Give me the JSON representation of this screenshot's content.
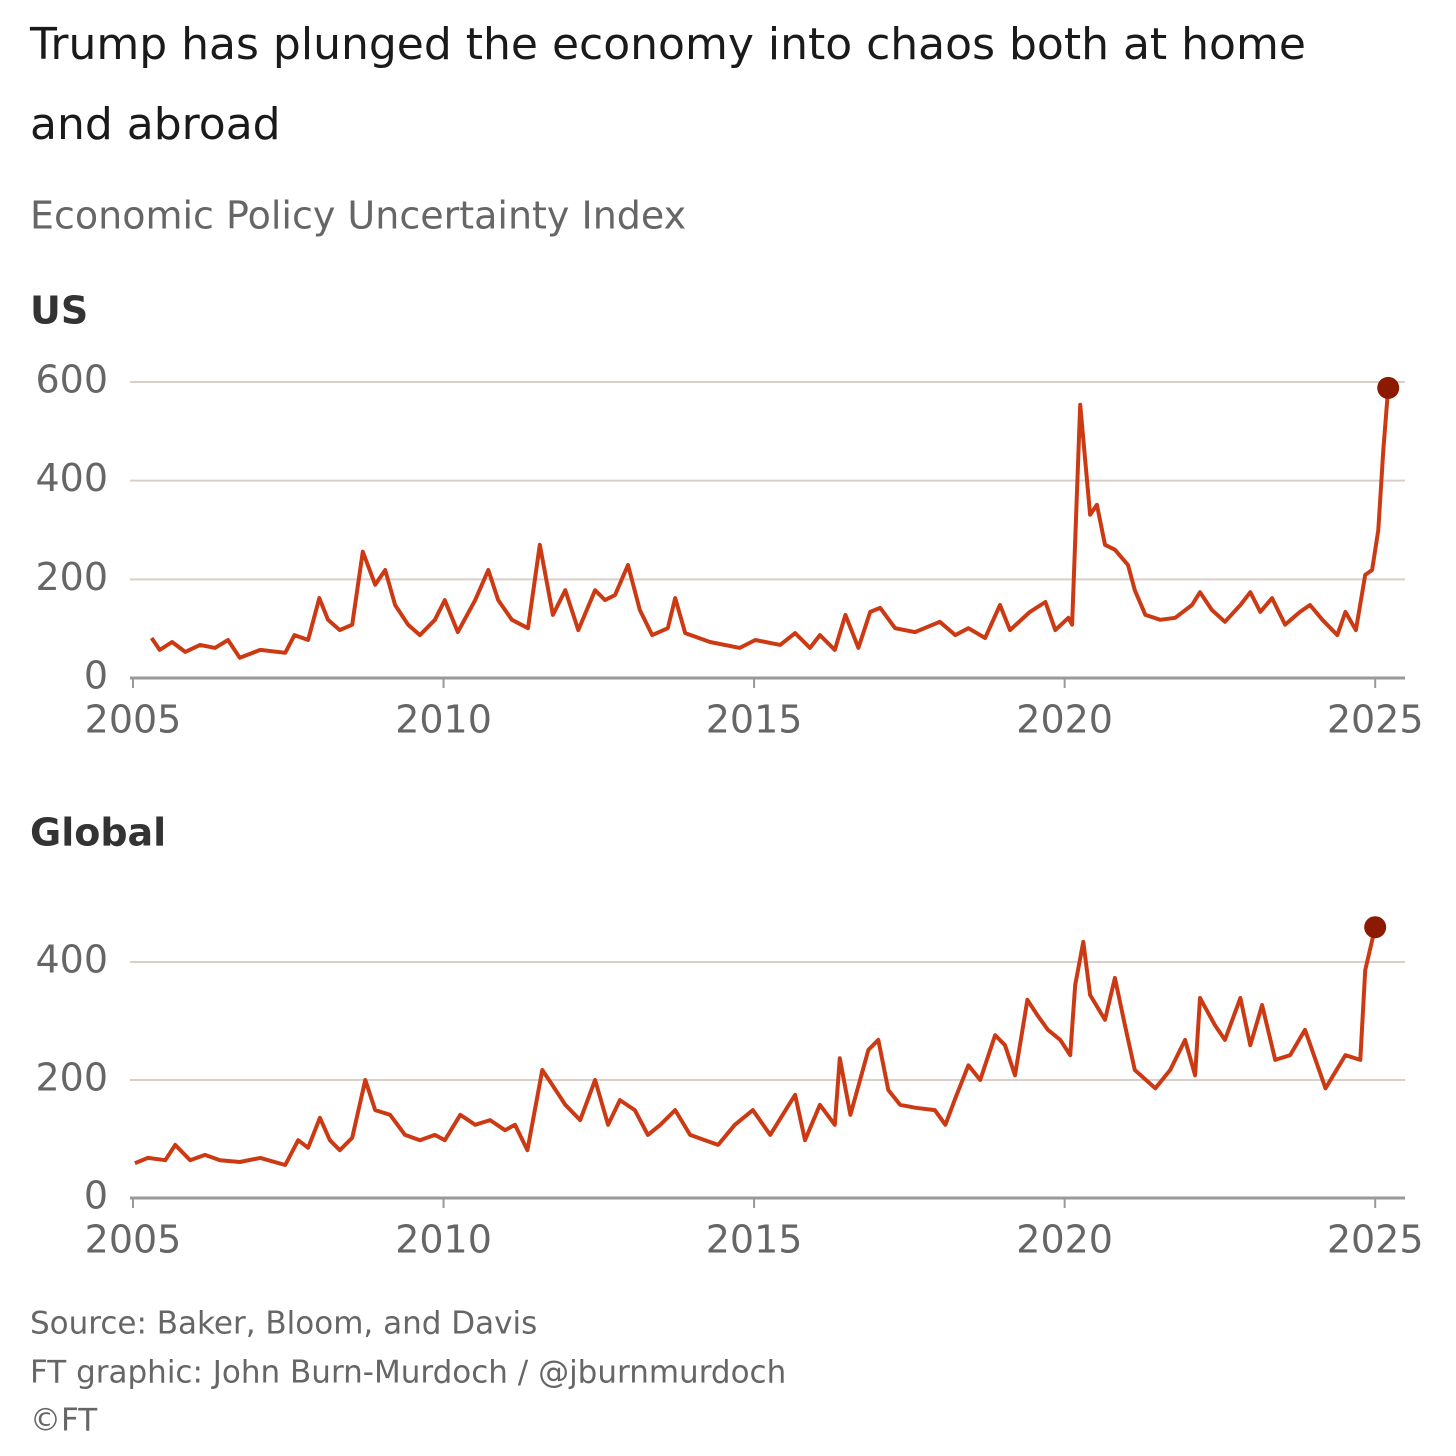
{
  "header": {
    "title": [
      "Trump has plunged the economy into chaos both at home",
      "and abroad"
    ],
    "subtitle": "Economic Policy Uncertainty Index"
  },
  "footer": [
    "Source: Baker, Bloom, and Davis",
    "FT graphic: John Burn-Murdoch / @jburnmurdoch",
    "©FT"
  ],
  "chart_data": [
    {
      "type": "line",
      "title": "US",
      "color": "#cc3a14",
      "marker_color": "#8b1a00",
      "grid": true,
      "xlim": [
        2005,
        2025.48
      ],
      "xticks": [
        2005,
        2010,
        2015,
        2020,
        2025
      ],
      "ylim": [
        0,
        600
      ],
      "yticks": [
        0,
        200,
        400,
        600
      ],
      "x": [
        2005.3,
        2005.43,
        2005.63,
        2005.84,
        2006.08,
        2006.32,
        2006.53,
        2006.72,
        2007.05,
        2007.45,
        2007.6,
        2007.82,
        2008.0,
        2008.14,
        2008.33,
        2008.53,
        2008.7,
        2008.9,
        2009.06,
        2009.22,
        2009.43,
        2009.62,
        2009.86,
        2010.02,
        2010.23,
        2010.51,
        2010.72,
        2010.88,
        2011.1,
        2011.36,
        2011.55,
        2011.76,
        2011.96,
        2012.17,
        2012.44,
        2012.6,
        2012.76,
        2012.97,
        2013.16,
        2013.36,
        2013.61,
        2013.73,
        2013.89,
        2014.29,
        2014.77,
        2015.02,
        2015.42,
        2015.66,
        2015.9,
        2016.06,
        2016.3,
        2016.47,
        2016.68,
        2016.87,
        2017.03,
        2017.27,
        2017.59,
        2017.99,
        2018.24,
        2018.45,
        2018.72,
        2018.96,
        2019.12,
        2019.44,
        2019.69,
        2019.85,
        2020.06,
        2020.12,
        2020.25,
        2020.41,
        2020.52,
        2020.65,
        2020.81,
        2021.02,
        2021.13,
        2021.3,
        2021.54,
        2021.78,
        2022.05,
        2022.18,
        2022.37,
        2022.58,
        2022.83,
        2022.99,
        2023.15,
        2023.34,
        2023.55,
        2023.79,
        2023.95,
        2024.15,
        2024.39,
        2024.52,
        2024.69,
        2024.84,
        2024.95,
        2025.05,
        2025.13,
        2025.21
      ],
      "values": [
        81,
        57,
        73,
        53,
        67,
        61,
        77,
        41,
        57,
        51,
        87,
        77,
        162,
        118,
        97,
        108,
        256,
        189,
        219,
        148,
        108,
        87,
        118,
        158,
        93,
        158,
        219,
        158,
        118,
        101,
        270,
        128,
        178,
        97,
        178,
        158,
        168,
        229,
        138,
        87,
        101,
        162,
        91,
        73,
        61,
        77,
        67,
        91,
        61,
        87,
        57,
        128,
        61,
        134,
        142,
        101,
        93,
        114,
        87,
        101,
        81,
        148,
        97,
        134,
        154,
        97,
        122,
        108,
        554,
        331,
        351,
        270,
        260,
        229,
        178,
        128,
        118,
        122,
        148,
        174,
        138,
        114,
        148,
        174,
        134,
        162,
        108,
        134,
        148,
        118,
        87,
        134,
        97,
        209,
        219,
        300,
        462,
        588
      ]
    },
    {
      "type": "line",
      "title": "Global",
      "color": "#cc3a14",
      "marker_color": "#8b1a00",
      "grid": true,
      "xlim": [
        2005,
        2025.48
      ],
      "xticks": [
        2005,
        2010,
        2015,
        2020,
        2025
      ],
      "ylim": [
        0,
        400
      ],
      "yticks": [
        0,
        200,
        400
      ],
      "x": [
        2005.03,
        2005.24,
        2005.52,
        2005.68,
        2005.92,
        2006.16,
        2006.4,
        2006.72,
        2007.05,
        2007.45,
        2007.66,
        2007.82,
        2008.01,
        2008.17,
        2008.33,
        2008.53,
        2008.74,
        2008.9,
        2009.14,
        2009.38,
        2009.62,
        2009.86,
        2010.02,
        2010.27,
        2010.51,
        2010.75,
        2010.99,
        2011.15,
        2011.35,
        2011.59,
        2011.75,
        2011.96,
        2012.2,
        2012.44,
        2012.65,
        2012.84,
        2013.08,
        2013.29,
        2013.49,
        2013.73,
        2013.97,
        2014.21,
        2014.42,
        2014.69,
        2014.98,
        2015.26,
        2015.66,
        2015.82,
        2016.06,
        2016.3,
        2016.38,
        2016.55,
        2016.84,
        2017.0,
        2017.16,
        2017.35,
        2017.59,
        2017.91,
        2018.08,
        2018.24,
        2018.45,
        2018.64,
        2018.88,
        2019.04,
        2019.2,
        2019.4,
        2019.56,
        2019.73,
        2019.93,
        2020.09,
        2020.17,
        2020.3,
        2020.41,
        2020.65,
        2020.81,
        2020.97,
        2021.13,
        2021.46,
        2021.7,
        2021.94,
        2022.1,
        2022.18,
        2022.42,
        2022.58,
        2022.83,
        2022.99,
        2023.18,
        2023.39,
        2023.63,
        2023.87,
        2024.2,
        2024.52,
        2024.76,
        2024.84,
        2025.0
      ],
      "values": [
        59,
        68,
        64,
        90,
        64,
        73,
        64,
        61,
        68,
        56,
        98,
        85,
        136,
        98,
        81,
        102,
        200,
        149,
        141,
        107,
        98,
        107,
        98,
        141,
        124,
        132,
        115,
        124,
        81,
        217,
        192,
        158,
        132,
        200,
        124,
        166,
        149,
        107,
        124,
        149,
        107,
        98,
        90,
        124,
        149,
        107,
        175,
        98,
        158,
        124,
        237,
        141,
        251,
        268,
        183,
        158,
        153,
        149,
        124,
        169,
        225,
        200,
        276,
        259,
        208,
        336,
        310,
        285,
        268,
        242,
        361,
        434,
        344,
        302,
        373,
        293,
        217,
        186,
        217,
        268,
        208,
        339,
        293,
        268,
        339,
        259,
        327,
        234,
        242,
        285,
        186,
        242,
        234,
        386,
        459
      ]
    }
  ]
}
